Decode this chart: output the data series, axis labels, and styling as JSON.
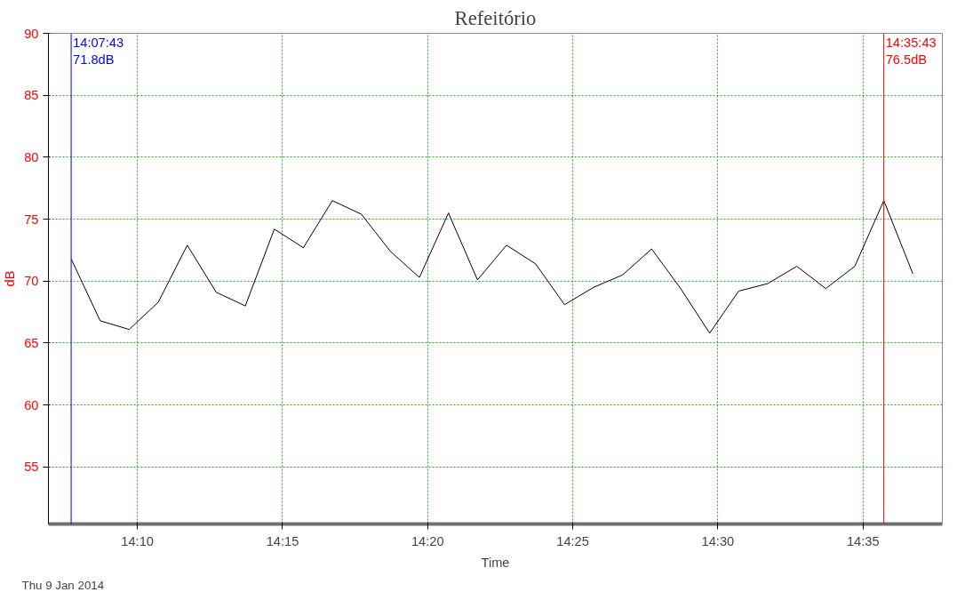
{
  "chart_data": {
    "type": "line",
    "title": "Refeitório",
    "xlabel": "Time",
    "ylabel": "dB",
    "x": [
      "2014-01-09T14:07:43",
      "2014-01-09T14:08:43",
      "2014-01-09T14:09:43",
      "2014-01-09T14:10:43",
      "2014-01-09T14:11:43",
      "2014-01-09T14:12:43",
      "2014-01-09T14:13:43",
      "2014-01-09T14:14:43",
      "2014-01-09T14:15:43",
      "2014-01-09T14:16:43",
      "2014-01-09T14:17:43",
      "2014-01-09T14:18:43",
      "2014-01-09T14:19:43",
      "2014-01-09T14:20:43",
      "2014-01-09T14:21:43",
      "2014-01-09T14:22:43",
      "2014-01-09T14:23:43",
      "2014-01-09T14:24:43",
      "2014-01-09T14:25:43",
      "2014-01-09T14:26:43",
      "2014-01-09T14:27:43",
      "2014-01-09T14:28:43",
      "2014-01-09T14:29:43",
      "2014-01-09T14:30:43",
      "2014-01-09T14:31:43",
      "2014-01-09T14:32:43",
      "2014-01-09T14:33:43",
      "2014-01-09T14:34:43",
      "2014-01-09T14:35:43",
      "2014-01-09T14:36:43"
    ],
    "series": [
      {
        "color": "#000000",
        "values": [
          71.8,
          66.8,
          66.1,
          68.3,
          72.9,
          69.1,
          68.0,
          74.2,
          72.7,
          76.5,
          75.4,
          72.4,
          70.3,
          75.5,
          70.1,
          72.9,
          71.4,
          68.1,
          69.5,
          70.5,
          72.6,
          69.4,
          65.8,
          69.2,
          69.8,
          71.2,
          69.4,
          71.2,
          76.5,
          70.6
        ]
      }
    ],
    "xlim": [
      "2014-01-09T14:06:56",
      "2014-01-09T14:37:44"
    ],
    "ylim": [
      50.4,
      90
    ],
    "xticks": [
      {
        "value": "2014-01-09T14:10",
        "label": "14:10"
      },
      {
        "value": "2014-01-09T14:15",
        "label": "14:15"
      },
      {
        "value": "2014-01-09T14:20",
        "label": "14:20"
      },
      {
        "value": "2014-01-09T14:25",
        "label": "14:25"
      },
      {
        "value": "2014-01-09T14:30",
        "label": "14:30"
      },
      {
        "value": "2014-01-09T14:35",
        "label": "14:35"
      }
    ],
    "yticks": [
      55,
      60,
      65,
      70,
      75,
      80,
      85,
      90
    ],
    "grid": true,
    "marker": "none",
    "line_style": "solid",
    "ref_lines": [
      {
        "axis": "x",
        "value": "2014-01-09T14:07:43",
        "label": "14:07:43\n71.8dB",
        "color": "#0000ff"
      },
      {
        "axis": "x",
        "value": "2014-01-09T14:35:43",
        "label": "14:35:43\n76.5dB",
        "color": "#ff0000"
      }
    ],
    "annotations": [
      "Thu 9 Jan 2014"
    ]
  }
}
